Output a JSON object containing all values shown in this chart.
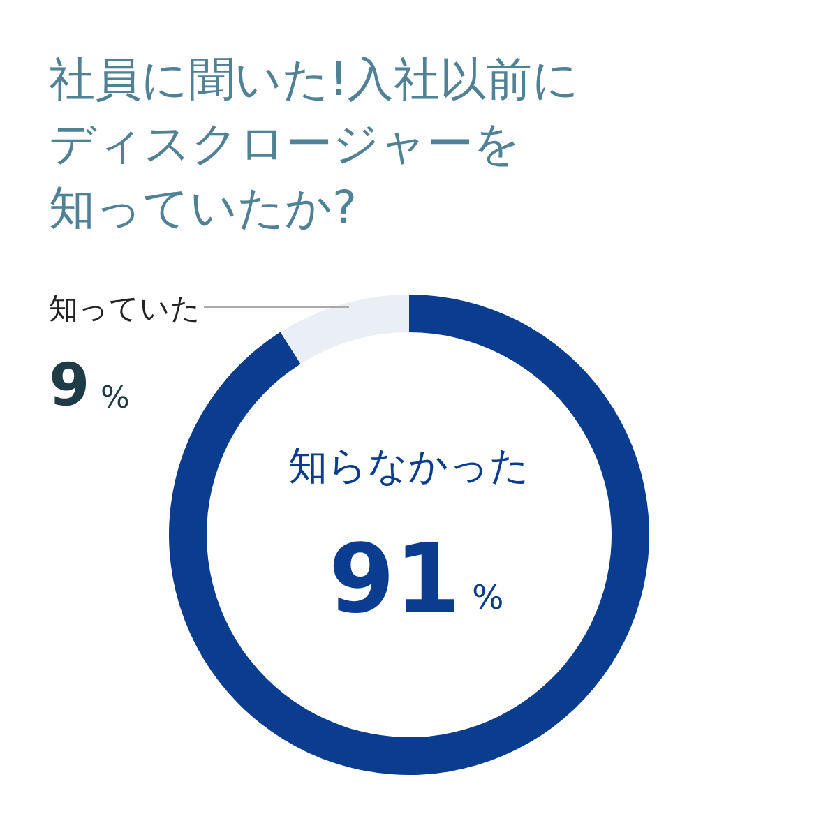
{
  "chart_data": {
    "type": "donut",
    "title": "社員に聞いた!入社以前にディスクロージャーを知っていたか?",
    "categories": [
      "知らなかった",
      "知っていた"
    ],
    "values": [
      91,
      9
    ],
    "colors": [
      "#0a3d8f",
      "#e9eff5"
    ],
    "value_labels": [
      "91%",
      "9%"
    ],
    "legend": false
  }
}
